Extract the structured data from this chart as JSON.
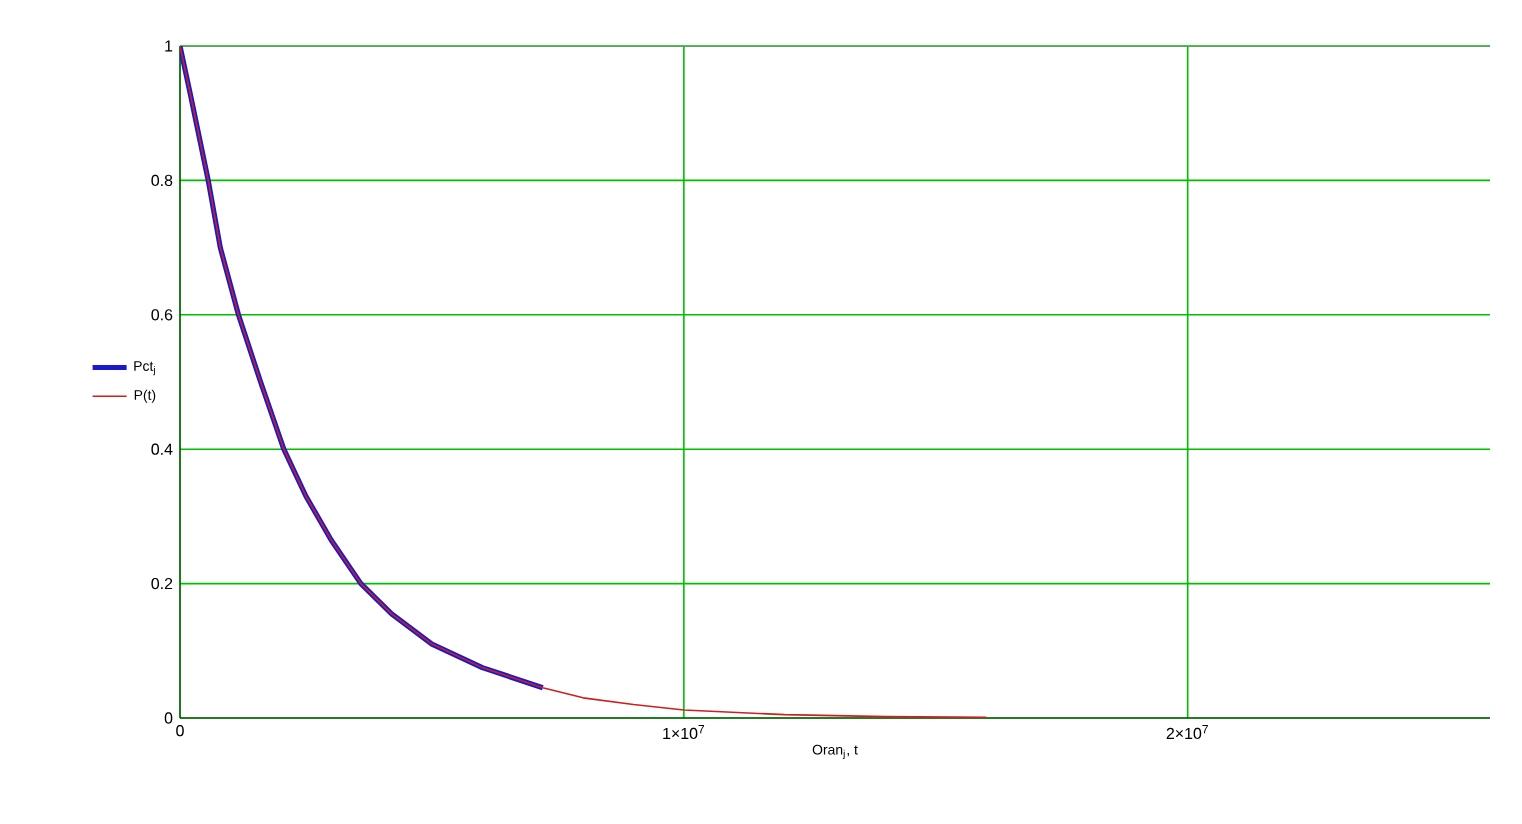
{
  "chart_data": {
    "type": "line",
    "xlabel": "Oran$_{j}$, t",
    "series": [
      {
        "name": "Pct$_{j}$",
        "color": "#1a1acc",
        "x": [
          0,
          200000,
          560000,
          800000,
          1160000,
          1600000,
          2060000,
          2500000,
          3000000,
          3590000,
          4200000,
          5000000,
          6000000,
          7200000
        ],
        "values": [
          1,
          0.93,
          0.8,
          0.7,
          0.6,
          0.5,
          0.4,
          0.33,
          0.265,
          0.2,
          0.155,
          0.11,
          0.075,
          0.045
        ]
      },
      {
        "name": "P(t)",
        "color": "#cc2020",
        "x": [
          0,
          200000,
          560000,
          800000,
          1160000,
          1600000,
          2060000,
          2500000,
          3000000,
          3590000,
          4200000,
          5000000,
          6000000,
          7200000,
          8000000,
          9000000,
          10000000,
          12000000,
          14000000,
          16000000
        ],
        "values": [
          1,
          0.93,
          0.8,
          0.7,
          0.6,
          0.5,
          0.4,
          0.33,
          0.265,
          0.2,
          0.155,
          0.11,
          0.075,
          0.045,
          0.03,
          0.02,
          0.012,
          0.005,
          0.002,
          0.001
        ]
      }
    ],
    "xlim": [
      0,
      26000000
    ],
    "ylim": [
      0,
      1
    ],
    "xticks": [
      0,
      {
        "value": 10000000,
        "label": "1×10$^{7}$"
      },
      {
        "value": 20000000,
        "label": "2×10$^{7}$"
      }
    ],
    "yticks": [
      0,
      0.2,
      0.4,
      0.6,
      0.8,
      1
    ],
    "grid": true,
    "legend": "left"
  }
}
